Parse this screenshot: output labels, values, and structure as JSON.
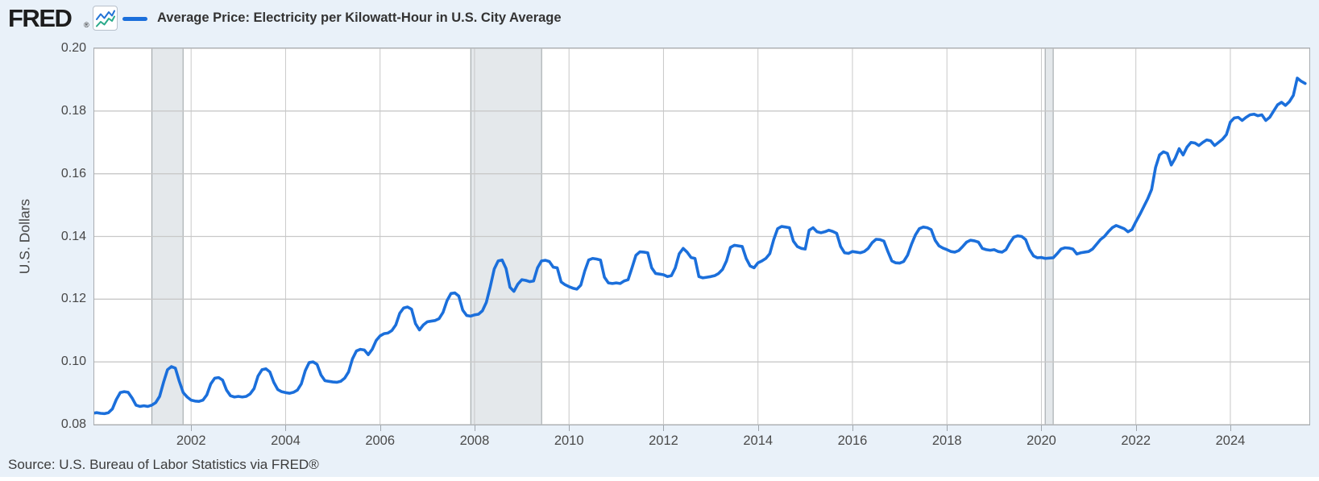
{
  "header": {
    "logo_text": "FRED",
    "registered_mark": "®",
    "legend": {
      "series_label": "Average Price: Electricity per Kilowatt-Hour in U.S. City Average"
    }
  },
  "footer": {
    "source_text": "Source: U.S. Bureau of Labor Statistics via FRED®"
  },
  "colors": {
    "page_bg": "#e9f1f9",
    "plot_bg": "#ffffff",
    "plot_border": "#a9adb1",
    "gridline": "#c8c8c8",
    "line": "#1b6fdb",
    "recession_fill": "#e4e8eb",
    "recession_border": "#9aa0a4",
    "icon_blue": "#2273d6",
    "icon_teal": "#2aaa8a"
  },
  "chart_data": {
    "type": "line",
    "title": "Average Price: Electricity per Kilowatt-Hour in U.S. City Average",
    "xlabel": "",
    "ylabel": "U.S. Dollars",
    "ylim": [
      0.08,
      0.2
    ],
    "xlim": [
      1999.95,
      2025.672
    ],
    "y_ticks": [
      0.2,
      0.18,
      0.16,
      0.14,
      0.12,
      0.1,
      0.08
    ],
    "x_ticks": [
      2002,
      2004,
      2006,
      2008,
      2010,
      2012,
      2014,
      2016,
      2018,
      2020,
      2022,
      2024
    ],
    "grid": true,
    "legend_position": "top-left",
    "recessions": [
      {
        "start": 2001.17,
        "end": 2001.83
      },
      {
        "start": 2007.92,
        "end": 2009.42
      },
      {
        "start": 2020.08,
        "end": 2020.25
      }
    ],
    "series": [
      {
        "name": "Average Price: Electricity per Kilowatt-Hour in U.S. City Average",
        "units": "U.S. Dollars",
        "frequency": "monthly",
        "start_year": 1999,
        "start_month": 11,
        "values": [
          0.0835,
          0.0836,
          0.0838,
          0.0836,
          0.0835,
          0.0838,
          0.085,
          0.088,
          0.0902,
          0.0905,
          0.0903,
          0.0885,
          0.0862,
          0.0858,
          0.086,
          0.0858,
          0.0862,
          0.087,
          0.089,
          0.0935,
          0.0975,
          0.0985,
          0.098,
          0.0938,
          0.0902,
          0.0888,
          0.0878,
          0.0875,
          0.0874,
          0.0878,
          0.0895,
          0.093,
          0.0948,
          0.095,
          0.0942,
          0.091,
          0.0892,
          0.0888,
          0.089,
          0.0888,
          0.089,
          0.0898,
          0.0915,
          0.0955,
          0.0975,
          0.0978,
          0.0968,
          0.0935,
          0.0912,
          0.0905,
          0.0902,
          0.09,
          0.0903,
          0.091,
          0.093,
          0.0972,
          0.0998,
          0.1,
          0.0992,
          0.0958,
          0.094,
          0.0938,
          0.0936,
          0.0935,
          0.0938,
          0.0948,
          0.0968,
          0.101,
          0.1035,
          0.104,
          0.1038,
          0.1023,
          0.104,
          0.1068,
          0.1083,
          0.109,
          0.1092,
          0.11,
          0.1118,
          0.1155,
          0.1172,
          0.1175,
          0.1168,
          0.1122,
          0.1102,
          0.1118,
          0.1128,
          0.113,
          0.1132,
          0.1138,
          0.1158,
          0.1195,
          0.1218,
          0.122,
          0.121,
          0.1165,
          0.1148,
          0.1146,
          0.115,
          0.1152,
          0.1163,
          0.119,
          0.124,
          0.1296,
          0.1322,
          0.1325,
          0.1298,
          0.1238,
          0.1225,
          0.1248,
          0.1262,
          0.126,
          0.1256,
          0.1258,
          0.13,
          0.1322,
          0.1324,
          0.132,
          0.1302,
          0.13,
          0.1255,
          0.1246,
          0.124,
          0.1235,
          0.1232,
          0.1245,
          0.129,
          0.1325,
          0.133,
          0.1328,
          0.1325,
          0.127,
          0.1252,
          0.125,
          0.1252,
          0.125,
          0.1258,
          0.1262,
          0.13,
          0.134,
          0.1351,
          0.135,
          0.1348,
          0.13,
          0.1282,
          0.128,
          0.1278,
          0.1272,
          0.1275,
          0.13,
          0.1345,
          0.1362,
          0.135,
          0.1333,
          0.133,
          0.1272,
          0.1268,
          0.127,
          0.1272,
          0.1275,
          0.1282,
          0.1295,
          0.1322,
          0.1365,
          0.1372,
          0.137,
          0.1368,
          0.133,
          0.1306,
          0.13,
          0.1316,
          0.1322,
          0.133,
          0.1345,
          0.139,
          0.1425,
          0.1432,
          0.143,
          0.1428,
          0.1385,
          0.1368,
          0.1362,
          0.136,
          0.142,
          0.1428,
          0.1415,
          0.1412,
          0.1415,
          0.142,
          0.1416,
          0.141,
          0.1368,
          0.1348,
          0.1346,
          0.1352,
          0.135,
          0.1348,
          0.1352,
          0.1362,
          0.138,
          0.1391,
          0.139,
          0.1385,
          0.1352,
          0.1322,
          0.1316,
          0.1315,
          0.132,
          0.134,
          0.1375,
          0.1405,
          0.1425,
          0.143,
          0.1428,
          0.1422,
          0.1388,
          0.137,
          0.1363,
          0.1358,
          0.1352,
          0.135,
          0.1355,
          0.1368,
          0.1382,
          0.1388,
          0.1386,
          0.1382,
          0.1362,
          0.1358,
          0.1356,
          0.1358,
          0.1352,
          0.135,
          0.1358,
          0.138,
          0.1398,
          0.1402,
          0.14,
          0.139,
          0.1358,
          0.1338,
          0.1332,
          0.1333,
          0.133,
          0.1331,
          0.1332,
          0.1345,
          0.136,
          0.1364,
          0.1363,
          0.136,
          0.1344,
          0.1348,
          0.135,
          0.1352,
          0.136,
          0.1375,
          0.139,
          0.14,
          0.1415,
          0.1428,
          0.1435,
          0.143,
          0.1425,
          0.1415,
          0.1422,
          0.1447,
          0.147,
          0.1495,
          0.152,
          0.155,
          0.162,
          0.166,
          0.167,
          0.1665,
          0.1628,
          0.165,
          0.168,
          0.166,
          0.1685,
          0.17,
          0.1698,
          0.169,
          0.17,
          0.1708,
          0.1705,
          0.169,
          0.17,
          0.171,
          0.1725,
          0.1765,
          0.1778,
          0.178,
          0.177,
          0.178,
          0.1788,
          0.179,
          0.1785,
          0.1788,
          0.177,
          0.178,
          0.18,
          0.182,
          0.1828,
          0.1818,
          0.183,
          0.185,
          0.1905,
          0.1895,
          0.1888
        ]
      }
    ]
  }
}
